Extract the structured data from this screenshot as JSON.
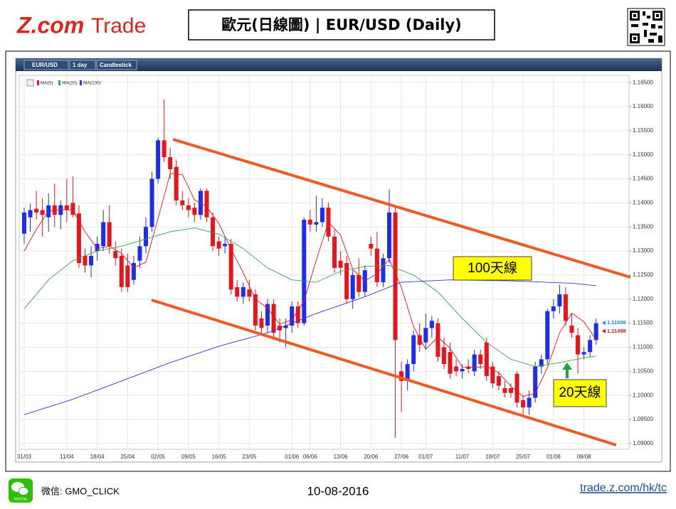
{
  "header": {
    "logo_z": "Z.com",
    "logo_trade": "Trade",
    "title": "歐元(日線圖) | EUR/USD (Daily)"
  },
  "chart_data": {
    "type": "candlestick",
    "toolbar": {
      "symbol": "EUR/USD",
      "interval": "1 day",
      "style": "Candlestick"
    },
    "categories": [
      "31/03",
      null,
      null,
      null,
      null,
      null,
      null,
      "11/04",
      null,
      null,
      null,
      null,
      "18/04",
      null,
      null,
      null,
      null,
      "25/04",
      null,
      null,
      null,
      null,
      "02/05",
      null,
      null,
      null,
      null,
      "09/05",
      null,
      null,
      null,
      null,
      "16/05",
      null,
      null,
      null,
      null,
      "23/05",
      null,
      null,
      null,
      null,
      null,
      null,
      "01/06",
      null,
      null,
      "06/06",
      null,
      null,
      null,
      null,
      "13/06",
      null,
      null,
      null,
      null,
      "20/06",
      null,
      null,
      null,
      null,
      "27/06",
      null,
      null,
      null,
      "01/07",
      null,
      null,
      null,
      null,
      null,
      "11/07",
      null,
      null,
      null,
      null,
      "18/07",
      null,
      null,
      null,
      null,
      "25/07",
      null,
      null,
      null,
      null,
      "01/08",
      null,
      null,
      null,
      null,
      "08/08",
      null,
      null
    ],
    "ohlc": [
      [
        1.1336,
        1.139,
        1.1315,
        1.138
      ],
      [
        1.137,
        1.1398,
        1.134,
        1.1385
      ],
      [
        1.1388,
        1.1425,
        1.1365,
        1.138
      ],
      [
        1.1385,
        1.141,
        1.133,
        1.1375
      ],
      [
        1.137,
        1.142,
        1.134,
        1.1395
      ],
      [
        1.1395,
        1.144,
        1.135,
        1.1375
      ],
      [
        1.1375,
        1.1405,
        1.1345,
        1.1395
      ],
      [
        1.1395,
        1.145,
        1.136,
        1.1385
      ],
      [
        1.14,
        1.1455,
        1.137,
        1.1375
      ],
      [
        1.1378,
        1.1395,
        1.1265,
        1.1275
      ],
      [
        1.129,
        1.1305,
        1.1255,
        1.127
      ],
      [
        1.127,
        1.131,
        1.1245,
        1.129
      ],
      [
        1.13,
        1.133,
        1.128,
        1.1315
      ],
      [
        1.131,
        1.1385,
        1.13,
        1.136
      ],
      [
        1.136,
        1.1395,
        1.1295,
        1.131
      ],
      [
        1.13,
        1.132,
        1.127,
        1.1285
      ],
      [
        1.129,
        1.1305,
        1.1215,
        1.1225
      ],
      [
        1.127,
        1.1295,
        1.1215,
        1.1225
      ],
      [
        1.124,
        1.129,
        1.123,
        1.1275
      ],
      [
        1.128,
        1.133,
        1.1265,
        1.131
      ],
      [
        1.131,
        1.137,
        1.1295,
        1.135
      ],
      [
        1.135,
        1.1465,
        1.134,
        1.145
      ],
      [
        1.145,
        1.1535,
        1.144,
        1.153
      ],
      [
        1.153,
        1.1615,
        1.1485,
        1.1495
      ],
      [
        1.1495,
        1.1515,
        1.145,
        1.147
      ],
      [
        1.1475,
        1.149,
        1.1395,
        1.1405
      ],
      [
        1.1405,
        1.1425,
        1.1385,
        1.1395
      ],
      [
        1.1395,
        1.141,
        1.137,
        1.1385
      ],
      [
        1.139,
        1.14,
        1.136,
        1.1375
      ],
      [
        1.1375,
        1.143,
        1.1365,
        1.1425
      ],
      [
        1.1425,
        1.143,
        1.136,
        1.137
      ],
      [
        1.137,
        1.138,
        1.13,
        1.131
      ],
      [
        1.132,
        1.133,
        1.129,
        1.1305
      ],
      [
        1.131,
        1.133,
        1.1295,
        1.1315
      ],
      [
        1.1315,
        1.1325,
        1.121,
        1.122
      ],
      [
        1.1225,
        1.124,
        1.1195,
        1.1205
      ],
      [
        1.1205,
        1.1235,
        1.119,
        1.1225
      ],
      [
        1.122,
        1.124,
        1.1195,
        1.1205
      ],
      [
        1.121,
        1.122,
        1.1135,
        1.1145
      ],
      [
        1.116,
        1.1175,
        1.1125,
        1.114
      ],
      [
        1.1145,
        1.12,
        1.113,
        1.119
      ],
      [
        1.119,
        1.12,
        1.112,
        1.113
      ],
      [
        1.1145,
        1.116,
        1.111,
        1.1135
      ],
      [
        1.114,
        1.116,
        1.11,
        1.1145
      ],
      [
        1.1145,
        1.1195,
        1.113,
        1.1185
      ],
      [
        1.1185,
        1.1195,
        1.114,
        1.115
      ],
      [
        1.115,
        1.137,
        1.1145,
        1.1365
      ],
      [
        1.1365,
        1.1385,
        1.134,
        1.1355
      ],
      [
        1.1355,
        1.1415,
        1.134,
        1.136
      ],
      [
        1.136,
        1.141,
        1.135,
        1.139
      ],
      [
        1.139,
        1.14,
        1.132,
        1.133
      ],
      [
        1.133,
        1.1345,
        1.1255,
        1.1265
      ],
      [
        1.128,
        1.13,
        1.125,
        1.1265
      ],
      [
        1.1275,
        1.129,
        1.119,
        1.12
      ],
      [
        1.12,
        1.126,
        1.118,
        1.125
      ],
      [
        1.125,
        1.1285,
        1.1205,
        1.1215
      ],
      [
        1.1215,
        1.127,
        1.1205,
        1.126
      ],
      [
        1.1315,
        1.133,
        1.129,
        1.1305
      ],
      [
        1.1305,
        1.134,
        1.1225,
        1.1235
      ],
      [
        1.1235,
        1.1295,
        1.1225,
        1.1285
      ],
      [
        1.1285,
        1.1428,
        1.1275,
        1.138
      ],
      [
        1.138,
        1.139,
        1.0912,
        1.1115
      ],
      [
        1.105,
        1.107,
        1.0965,
        1.103
      ],
      [
        1.103,
        1.1075,
        1.101,
        1.1065
      ],
      [
        1.1065,
        1.1135,
        1.105,
        1.1125
      ],
      [
        1.1125,
        1.115,
        1.109,
        1.1105
      ],
      [
        1.111,
        1.117,
        1.1095,
        1.114
      ],
      [
        1.114,
        1.1165,
        1.112,
        1.1155
      ],
      [
        1.115,
        1.116,
        1.107,
        1.108
      ],
      [
        1.11,
        1.112,
        1.1055,
        1.1065
      ],
      [
        1.109,
        1.111,
        1.1035,
        1.1045
      ],
      [
        1.106,
        1.1075,
        1.104,
        1.105
      ],
      [
        1.105,
        1.1065,
        1.1035,
        1.1055
      ],
      [
        1.106,
        1.1075,
        1.1045,
        1.1055
      ],
      [
        1.105,
        1.1095,
        1.104,
        1.1085
      ],
      [
        1.1085,
        1.1095,
        1.1055,
        1.1065
      ],
      [
        1.111,
        1.112,
        1.103,
        1.104
      ],
      [
        1.106,
        1.107,
        1.1015,
        1.1025
      ],
      [
        1.104,
        1.105,
        1.101,
        1.102
      ],
      [
        1.1015,
        1.103,
        1.0995,
        1.1005
      ],
      [
        1.1015,
        1.1025,
        1.0995,
        1.1005
      ],
      [
        1.1045,
        1.105,
        1.0975,
        1.0985
      ],
      [
        1.099,
        1.1,
        1.0955,
        1.0975
      ],
      [
        1.0975,
        1.101,
        1.096,
        1.0995
      ],
      [
        1.0995,
        1.107,
        1.0985,
        1.106
      ],
      [
        1.106,
        1.1085,
        1.1045,
        1.1075
      ],
      [
        1.1075,
        1.118,
        1.1065,
        1.1175
      ],
      [
        1.1175,
        1.12,
        1.116,
        1.1185
      ],
      [
        1.1185,
        1.123,
        1.117,
        1.121
      ],
      [
        1.121,
        1.1225,
        1.1145,
        1.1155
      ],
      [
        1.1145,
        1.117,
        1.112,
        1.113
      ],
      [
        1.1125,
        1.114,
        1.1045,
        1.1085
      ],
      [
        1.1085,
        1.11,
        1.1075,
        1.109
      ],
      [
        1.109,
        1.1125,
        1.108,
        1.1115
      ],
      [
        1.1115,
        1.116,
        1.1105,
        1.115
      ]
    ],
    "up_color": "#1c2cf0",
    "down_color": "#e8141c",
    "series": [
      {
        "name": "MA(5)",
        "color": "#e8141c",
        "x": [
          0,
          2,
          4,
          6,
          8,
          10,
          12,
          14,
          16,
          18,
          20,
          22,
          24,
          26,
          28,
          30,
          32,
          34,
          36,
          38,
          40,
          42,
          44,
          46,
          48,
          50,
          52,
          54,
          56,
          58,
          60,
          62,
          64,
          66,
          68,
          70,
          72,
          74,
          76,
          78,
          80,
          82,
          84,
          86,
          88,
          90,
          92,
          94
        ],
        "values": [
          1.13,
          1.1345,
          1.1383,
          1.1386,
          1.1385,
          1.134,
          1.1305,
          1.131,
          1.1295,
          1.1265,
          1.1277,
          1.1368,
          1.1461,
          1.1459,
          1.1406,
          1.1392,
          1.1357,
          1.1304,
          1.1255,
          1.12,
          1.1181,
          1.1148,
          1.1157,
          1.1196,
          1.1281,
          1.136,
          1.1333,
          1.1262,
          1.1238,
          1.1253,
          1.1283,
          1.1224,
          1.1143,
          1.1096,
          1.1121,
          1.1098,
          1.1059,
          1.1058,
          1.106,
          1.1047,
          1.1019,
          1.0998,
          1.1004,
          1.1058,
          1.113,
          1.1171,
          1.1153,
          1.1115
        ]
      },
      {
        "name": "MA(20)",
        "color": "#3aa04a",
        "x": [
          0,
          4,
          8,
          12,
          16,
          20,
          24,
          28,
          32,
          36,
          40,
          44,
          48,
          52,
          56,
          60,
          64,
          68,
          72,
          76,
          80,
          84,
          88,
          92,
          94
        ],
        "values": [
          1.118,
          1.124,
          1.128,
          1.13,
          1.131,
          1.1325,
          1.134,
          1.1348,
          1.1335,
          1.1305,
          1.1265,
          1.124,
          1.1235,
          1.1258,
          1.1268,
          1.127,
          1.125,
          1.1215,
          1.116,
          1.111,
          1.1075,
          1.106,
          1.1068,
          1.1078,
          1.1082
        ]
      },
      {
        "name": "MA(100)",
        "color": "#2a3fc8",
        "x": [
          0,
          8,
          16,
          24,
          32,
          40,
          48,
          56,
          62,
          70,
          80,
          90,
          94
        ],
        "values": [
          1.096,
          1.0992,
          1.103,
          1.1068,
          1.1102,
          1.113,
          1.117,
          1.1205,
          1.1235,
          1.124,
          1.1238,
          1.1233,
          1.1228
        ]
      }
    ],
    "markers": [
      {
        "value": 1.11508,
        "color": "#1c8fd8"
      },
      {
        "value": 1.11498,
        "color": "#e8141c"
      }
    ],
    "annotations": [
      "100天線",
      "20天線"
    ],
    "ylim": [
      1.0888,
      1.1665
    ],
    "yticks": [
      {
        "value": 1.09,
        "label": "1.09000"
      },
      {
        "value": 1.095,
        "label": "1.09500"
      },
      {
        "value": 1.1,
        "label": "1.10000"
      },
      {
        "value": 1.105,
        "label": "1.10500"
      },
      {
        "value": 1.11,
        "label": "1.11000"
      },
      {
        "value": 1.115,
        "label": "1.11500"
      },
      {
        "value": 1.12,
        "label": "1.12000"
      },
      {
        "value": 1.125,
        "label": "1.12500"
      },
      {
        "value": 1.13,
        "label": "1.13000"
      },
      {
        "value": 1.135,
        "label": "1.13500"
      },
      {
        "value": 1.14,
        "label": "1.14000"
      },
      {
        "value": 1.145,
        "label": "1.14500"
      },
      {
        "value": 1.15,
        "label": "1.15000"
      },
      {
        "value": 1.155,
        "label": "1.15500"
      },
      {
        "value": 1.16,
        "label": "1.16000"
      },
      {
        "value": 1.165,
        "label": "1.16500"
      }
    ],
    "grid": true
  },
  "footer": {
    "icon_label": "WeChat",
    "wechat": "微信: GMO_CLICK",
    "date": "10-08-2016",
    "link": "trade.z.com/hk/tc"
  }
}
